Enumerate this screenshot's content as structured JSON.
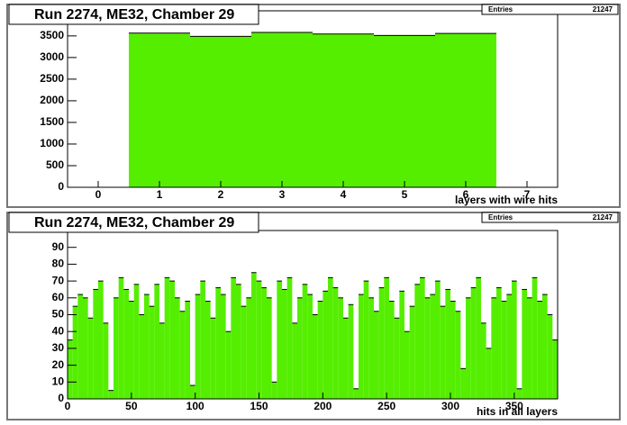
{
  "chart_data": [
    {
      "type": "histogram",
      "title": "Run 2274, ME32, Chamber 29",
      "x_label": "layers with wire hits",
      "stats_label": "Entries",
      "entries": 21247,
      "color": "#55ee00",
      "bins": [
        0.5,
        1.5,
        2.5,
        3.5,
        4.5,
        5.5,
        6.5
      ],
      "values": [
        3565,
        3490,
        3580,
        3545,
        3510,
        3557
      ],
      "xlim": [
        -0.5,
        7.5
      ],
      "xticks": [
        0,
        1,
        2,
        3,
        4,
        5,
        6,
        7
      ],
      "ylim": [
        0,
        4080
      ],
      "yticks": [
        0,
        500,
        1000,
        1500,
        2000,
        2500,
        3000,
        3500
      ]
    },
    {
      "type": "histogram",
      "title": "Run 2274, ME32, Chamber 29",
      "x_label": "hits in all layers",
      "stats_label": "Entries",
      "entries": 21247,
      "color": "#55ee00",
      "bins": [
        0,
        4,
        8,
        12,
        16,
        20,
        24,
        28,
        32,
        36,
        40,
        44,
        48,
        52,
        56,
        60,
        64,
        68,
        72,
        76,
        80,
        84,
        88,
        92,
        96,
        100,
        104,
        108,
        112,
        116,
        120,
        124,
        128,
        132,
        136,
        140,
        144,
        148,
        152,
        156,
        160,
        164,
        168,
        172,
        176,
        180,
        184,
        188,
        192,
        196,
        200,
        204,
        208,
        212,
        216,
        220,
        224,
        228,
        232,
        236,
        240,
        244,
        248,
        252,
        256,
        260,
        264,
        268,
        272,
        276,
        280,
        284,
        288,
        292,
        296,
        300,
        304,
        308,
        312,
        316,
        320,
        324,
        328,
        332,
        336,
        340,
        344,
        348,
        352,
        356,
        360,
        364,
        368,
        372,
        376,
        380,
        384
      ],
      "values": [
        35,
        55,
        62,
        60,
        48,
        65,
        70,
        45,
        5,
        60,
        72,
        65,
        58,
        68,
        50,
        62,
        55,
        68,
        45,
        72,
        70,
        60,
        52,
        58,
        8,
        62,
        70,
        58,
        48,
        66,
        62,
        40,
        72,
        68,
        55,
        60,
        75,
        70,
        66,
        60,
        10,
        70,
        65,
        72,
        45,
        60,
        68,
        62,
        50,
        58,
        64,
        72,
        66,
        60,
        48,
        56,
        6,
        62,
        70,
        60,
        52,
        66,
        72,
        58,
        48,
        64,
        40,
        55,
        68,
        72,
        60,
        62,
        70,
        55,
        65,
        58,
        52,
        18,
        60,
        66,
        72,
        45,
        30,
        60,
        66,
        58,
        62,
        70,
        6,
        65,
        60,
        72,
        58,
        62,
        50,
        35
      ],
      "xlim": [
        0,
        384
      ],
      "xticks": [
        0,
        50,
        100,
        150,
        200,
        250,
        300,
        350
      ],
      "ylim": [
        0,
        100
      ],
      "yticks": [
        0,
        10,
        20,
        30,
        40,
        50,
        60,
        70,
        80,
        90
      ]
    }
  ]
}
